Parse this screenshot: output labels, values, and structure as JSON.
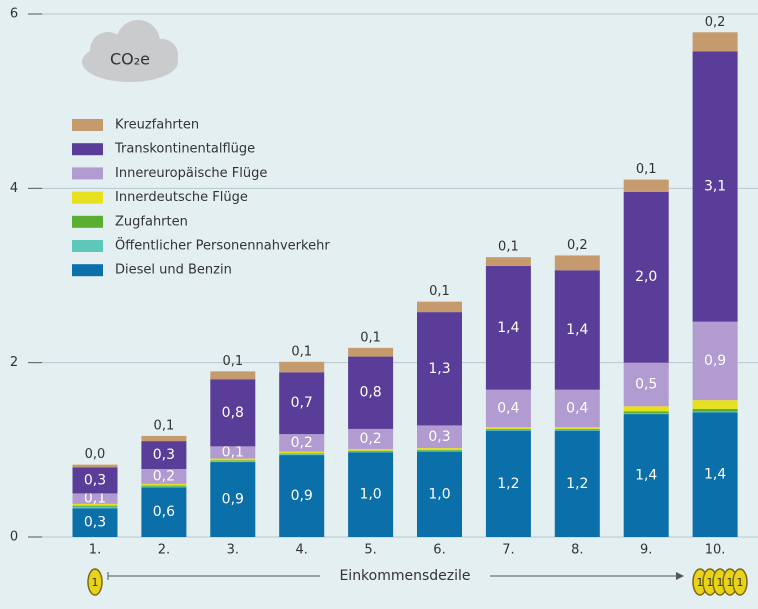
{
  "chart_data": {
    "type": "bar",
    "stacked": true,
    "badge": "CO₂e",
    "x_label": "Einkommensdezile",
    "coin_label": "1",
    "categories": [
      "1.",
      "2.",
      "3.",
      "4.",
      "5.",
      "6.",
      "7.",
      "8.",
      "9.",
      "10."
    ],
    "ylim": [
      0,
      6
    ],
    "yticks": [
      0,
      2,
      4,
      6
    ],
    "grid": true,
    "series": [
      {
        "name": "Diesel und Benzin",
        "color": "#0b6fa9",
        "values": [
          0.33,
          0.57,
          0.86,
          0.94,
          0.97,
          0.98,
          1.22,
          1.22,
          1.41,
          1.43
        ],
        "value_labels": [
          "0,3",
          "0,6",
          "0,9",
          "0,9",
          "1,0",
          "1,0",
          "1,2",
          "1,2",
          "1,4",
          "1,4"
        ]
      },
      {
        "name": "Öffentlicher Personennahverkehr",
        "color": "#5dc7b9",
        "values": [
          0.02,
          0.01,
          0.01,
          0.01,
          0.01,
          0.01,
          0.01,
          0.01,
          0.01,
          0.01
        ]
      },
      {
        "name": "Zugfahrten",
        "color": "#5aae32",
        "values": [
          0.01,
          0.01,
          0.01,
          0.01,
          0.01,
          0.01,
          0.01,
          0.01,
          0.02,
          0.03
        ]
      },
      {
        "name": "Innerdeutsche Flüge",
        "color": "#e6e01e",
        "values": [
          0.02,
          0.02,
          0.02,
          0.02,
          0.02,
          0.02,
          0.02,
          0.02,
          0.06,
          0.1
        ]
      },
      {
        "name": "Innereuropäische Flüge",
        "color": "#b29bd0",
        "values": [
          0.12,
          0.17,
          0.14,
          0.2,
          0.23,
          0.26,
          0.43,
          0.43,
          0.5,
          0.9
        ],
        "value_labels": [
          "0,1",
          "0,2",
          "0,1",
          "0,2",
          "0,2",
          "0,3",
          "0,4",
          "0,4",
          "0,5",
          "0,9"
        ]
      },
      {
        "name": "Transkontinentalflüge",
        "color": "#5a3d99",
        "values": [
          0.3,
          0.32,
          0.77,
          0.71,
          0.83,
          1.3,
          1.42,
          1.37,
          1.96,
          3.1
        ],
        "value_labels": [
          "0,3",
          "0,3",
          "0,8",
          "0,7",
          "0,8",
          "1,3",
          "1,4",
          "1,4",
          "2,0",
          "3,1"
        ]
      },
      {
        "name": "Kreuzfahrten",
        "color": "#c59b6d",
        "values": [
          0.03,
          0.06,
          0.09,
          0.12,
          0.1,
          0.12,
          0.1,
          0.17,
          0.14,
          0.22
        ],
        "value_labels": [
          "0,0",
          "0,1",
          "0,1",
          "0,1",
          "0,1",
          "0,1",
          "0,1",
          "0,2",
          "0,1",
          "0,2"
        ]
      }
    ]
  }
}
